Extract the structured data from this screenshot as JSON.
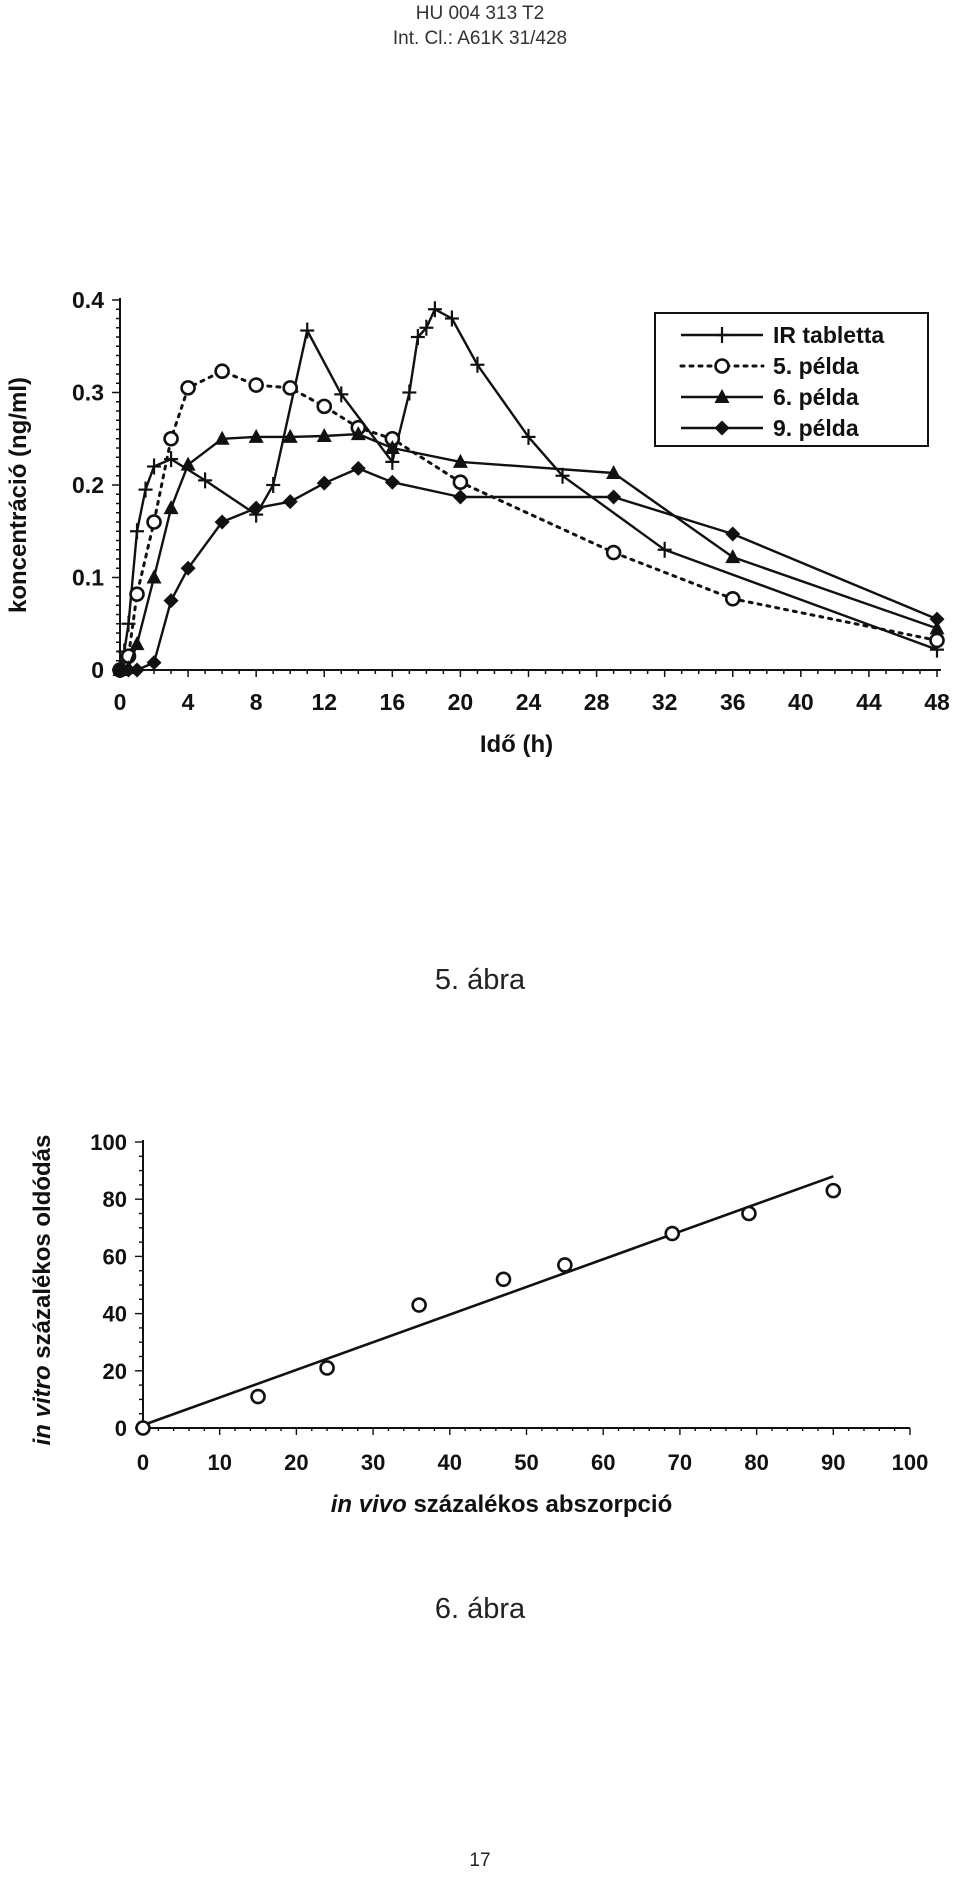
{
  "header": {
    "line1": "HU 004 313 T2",
    "line2": "Int. Cl.: A61K 31/428"
  },
  "figures": {
    "fig5_caption": "5. ábra",
    "fig6_caption": "6. ábra"
  },
  "page_number": "17",
  "chart_data": [
    {
      "type": "line",
      "title": "",
      "xlabel": "Idő (h)",
      "ylabel": "koncentráció (ng/ml)",
      "xlim": [
        0,
        48
      ],
      "ylim": [
        0,
        0.4
      ],
      "x_ticks": [
        "0",
        "4",
        "8",
        "12",
        "16",
        "20",
        "24",
        "28",
        "32",
        "36",
        "40",
        "44",
        "48"
      ],
      "y_ticks": [
        "0",
        "0.1",
        "0.2",
        "0.3",
        "0.4"
      ],
      "grid": false,
      "legend_position": "top-right",
      "series": [
        {
          "name": "IR tabletta",
          "marker": "plus",
          "dash": "solid",
          "points": [
            [
              0,
              0
            ],
            [
              0.25,
              0.02
            ],
            [
              0.5,
              0.05
            ],
            [
              1,
              0.15
            ],
            [
              1.5,
              0.195
            ],
            [
              2,
              0.22
            ],
            [
              3,
              0.228
            ],
            [
              5,
              0.205
            ],
            [
              8,
              0.168
            ],
            [
              9,
              0.2
            ],
            [
              11,
              0.367
            ],
            [
              13,
              0.298
            ],
            [
              16,
              0.225
            ],
            [
              17,
              0.3
            ],
            [
              17.5,
              0.36
            ],
            [
              18,
              0.37
            ],
            [
              18.5,
              0.39
            ],
            [
              19.5,
              0.38
            ],
            [
              21,
              0.33
            ],
            [
              24,
              0.252
            ],
            [
              26,
              0.21
            ],
            [
              32,
              0.13
            ],
            [
              48,
              0.022
            ]
          ]
        },
        {
          "name": "5. példa",
          "marker": "circle-open",
          "dash": "dotted",
          "points": [
            [
              0,
              0
            ],
            [
              0.5,
              0.015
            ],
            [
              1,
              0.082
            ],
            [
              2,
              0.16
            ],
            [
              3,
              0.25
            ],
            [
              4,
              0.305
            ],
            [
              6,
              0.323
            ],
            [
              8,
              0.308
            ],
            [
              10,
              0.305
            ],
            [
              12,
              0.285
            ],
            [
              14,
              0.262
            ],
            [
              16,
              0.25
            ],
            [
              20,
              0.203
            ],
            [
              29,
              0.127
            ],
            [
              36,
              0.077
            ],
            [
              48,
              0.032
            ]
          ]
        },
        {
          "name": "6. példa",
          "marker": "triangle",
          "dash": "solid",
          "points": [
            [
              0,
              0
            ],
            [
              0.5,
              0.002
            ],
            [
              1,
              0.028
            ],
            [
              2,
              0.1
            ],
            [
              3,
              0.175
            ],
            [
              4,
              0.222
            ],
            [
              6,
              0.25
            ],
            [
              8,
              0.252
            ],
            [
              10,
              0.252
            ],
            [
              12,
              0.253
            ],
            [
              14,
              0.255
            ],
            [
              16,
              0.24
            ],
            [
              20,
              0.225
            ],
            [
              29,
              0.213
            ],
            [
              36,
              0.122
            ],
            [
              48,
              0.045
            ]
          ]
        },
        {
          "name": "9. példa",
          "marker": "diamond",
          "dash": "solid",
          "points": [
            [
              0,
              0
            ],
            [
              0.5,
              0
            ],
            [
              1,
              0
            ],
            [
              2,
              0.008
            ],
            [
              3,
              0.075
            ],
            [
              4,
              0.11
            ],
            [
              6,
              0.16
            ],
            [
              8,
              0.175
            ],
            [
              10,
              0.182
            ],
            [
              12,
              0.202
            ],
            [
              14,
              0.218
            ],
            [
              16,
              0.203
            ],
            [
              20,
              0.187
            ],
            [
              29,
              0.187
            ],
            [
              36,
              0.147
            ],
            [
              48,
              0.055
            ]
          ]
        }
      ]
    },
    {
      "type": "scatter",
      "title": "",
      "xlabel_italic": "in vivo",
      "xlabel_rest": " százalékos abszorpció",
      "ylabel_italic": "in vitro",
      "ylabel_rest": " százalékos oldódás",
      "xlim": [
        0,
        100
      ],
      "ylim": [
        0,
        100
      ],
      "x_ticks": [
        "0",
        "10",
        "20",
        "30",
        "40",
        "50",
        "60",
        "70",
        "80",
        "90",
        "100"
      ],
      "y_ticks": [
        "0",
        "20",
        "40",
        "60",
        "80",
        "100"
      ],
      "grid": false,
      "points": [
        [
          0,
          0
        ],
        [
          15,
          11
        ],
        [
          24,
          21
        ],
        [
          36,
          43
        ],
        [
          47,
          52
        ],
        [
          55,
          57
        ],
        [
          69,
          68
        ],
        [
          79,
          75
        ],
        [
          90,
          83
        ]
      ],
      "fit_line": [
        [
          0,
          1
        ],
        [
          90,
          88
        ]
      ]
    }
  ]
}
